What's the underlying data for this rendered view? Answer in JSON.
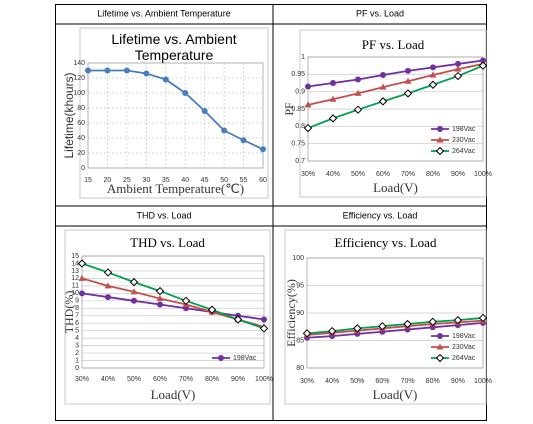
{
  "panel_headers": [
    "Lifetime vs. Ambient Temperature",
    "PF vs. Load",
    "THD vs. Load",
    "Efficiency vs. Load"
  ],
  "chart_data": [
    {
      "type": "line",
      "title": "Lifetime vs. Ambient Temperature",
      "xlabel": "Ambient Temperature(℃)",
      "ylabel": "Lifetime(khours)",
      "x": [
        15,
        20,
        25,
        30,
        35,
        40,
        45,
        50,
        55,
        60
      ],
      "series": [
        {
          "color": "#4a7ebb",
          "marker": "circle",
          "values": [
            130,
            130,
            130,
            126,
            118,
            100,
            76,
            50,
            37,
            25
          ]
        }
      ],
      "xlim": [
        15,
        60
      ],
      "xticks": [
        15,
        20,
        25,
        30,
        35,
        40,
        45,
        50,
        55,
        60
      ],
      "ylim": [
        0,
        140
      ],
      "yticks": [
        0,
        20,
        40,
        60,
        80,
        100,
        120,
        140
      ],
      "grid": true
    },
    {
      "type": "line",
      "title": "PF vs. Load",
      "xlabel": "Load(V)",
      "ylabel": "PF",
      "categories": [
        "30%",
        "40%",
        "50%",
        "60%",
        "70%",
        "80%",
        "90%",
        "100%"
      ],
      "series": [
        {
          "name": "198Vac",
          "color": "#7030a0",
          "marker": "circle",
          "values": [
            0.915,
            0.925,
            0.935,
            0.948,
            0.96,
            0.97,
            0.98,
            0.99
          ]
        },
        {
          "name": "230Vac",
          "color": "#c0504d",
          "marker": "triangle",
          "values": [
            0.862,
            0.878,
            0.895,
            0.913,
            0.93,
            0.948,
            0.965,
            0.98
          ]
        },
        {
          "name": "264Vac",
          "color": "#00a050",
          "marker": "diamond",
          "values": [
            0.795,
            0.823,
            0.848,
            0.872,
            0.895,
            0.92,
            0.945,
            0.975
          ]
        }
      ],
      "ylim": [
        0.7,
        1
      ],
      "yticks": [
        0.7,
        0.75,
        0.8,
        0.85,
        0.9,
        0.95,
        1
      ],
      "grid": true,
      "legend": "lower right"
    },
    {
      "type": "line",
      "title": "THD vs. Load",
      "xlabel": "Load(V)",
      "ylabel": "THD(%)",
      "categories": [
        "30%",
        "40%",
        "50%",
        "60%",
        "70%",
        "80%",
        "90%",
        "100%"
      ],
      "series": [
        {
          "name": "198Vac",
          "color": "#7030a0",
          "marker": "circle",
          "values": [
            10,
            9.5,
            9,
            8.5,
            8,
            7.5,
            7,
            6.5
          ]
        },
        {
          "color": "#c0504d",
          "marker": "triangle",
          "values": [
            12,
            11,
            10.2,
            9.3,
            8.5,
            7.5,
            6.5,
            5.5
          ]
        },
        {
          "color": "#00a050",
          "marker": "diamond",
          "values": [
            14,
            12.8,
            11.5,
            10.3,
            9,
            7.8,
            6.5,
            5.3
          ]
        }
      ],
      "ylim": [
        0,
        15
      ],
      "yticks": [
        0,
        1,
        2,
        3,
        4,
        5,
        6,
        7,
        8,
        9,
        10,
        11,
        12,
        13,
        14,
        15
      ],
      "grid": true,
      "legend": "lower right"
    },
    {
      "type": "line",
      "title": "Efficiency vs. Load",
      "xlabel": "Load(V)",
      "ylabel": "Efficiency(%)",
      "categories": [
        "30%",
        "40%",
        "50%",
        "60%",
        "70%",
        "80%",
        "90%",
        "100%"
      ],
      "series": [
        {
          "name": "198Vac",
          "color": "#7030a0",
          "marker": "circle",
          "values": [
            85.5,
            85.8,
            86.2,
            86.6,
            87,
            87.4,
            87.8,
            88.2
          ]
        },
        {
          "name": "230Vac",
          "color": "#c0504d",
          "marker": "triangle",
          "values": [
            86,
            86.4,
            86.8,
            87.2,
            87.6,
            88,
            88.3,
            88.6
          ]
        },
        {
          "name": "264Vac",
          "color": "#00a050",
          "marker": "diamond",
          "values": [
            86.3,
            86.7,
            87.2,
            87.6,
            88,
            88.4,
            88.7,
            89.1
          ]
        }
      ],
      "ylim": [
        80,
        100
      ],
      "yticks": [
        80,
        85,
        90,
        95,
        100
      ],
      "grid": true,
      "legend": "lower right"
    }
  ]
}
